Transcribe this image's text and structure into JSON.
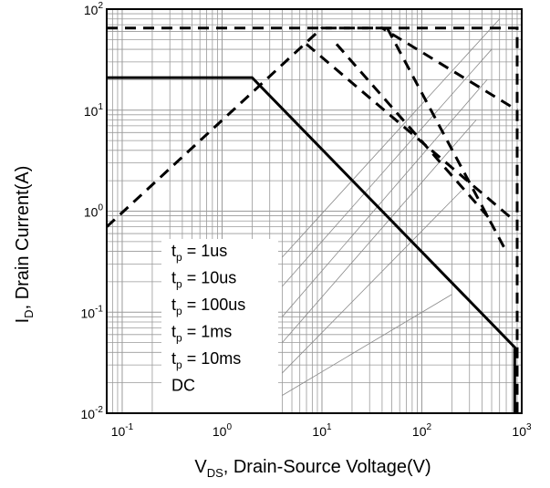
{
  "chart_data": {
    "type": "line",
    "title": "",
    "xlabel": {
      "main": "V",
      "sub": "DS",
      "rest": ", Drain-Source Voltage(V)"
    },
    "ylabel": {
      "main": "I",
      "sub": "D",
      "rest": ", Drain Current(A)"
    },
    "x_scale": "log",
    "y_scale": "log",
    "xlim": [
      0.07,
      1000
    ],
    "ylim": [
      0.01,
      100
    ],
    "grid": true,
    "x_ticks": [
      {
        "base": "10",
        "exp": "-1"
      },
      {
        "base": "10",
        "exp": "0"
      },
      {
        "base": "10",
        "exp": "1"
      },
      {
        "base": "10",
        "exp": "2"
      },
      {
        "base": "10",
        "exp": "3"
      }
    ],
    "y_ticks": [
      {
        "base": "10",
        "exp": "-2"
      },
      {
        "base": "10",
        "exp": "-1"
      },
      {
        "base": "10",
        "exp": "0"
      },
      {
        "base": "10",
        "exp": "1"
      },
      {
        "base": "10",
        "exp": "2"
      }
    ],
    "legend_position": "bottom-left",
    "legend": [
      {
        "main": "t",
        "sub": "p",
        "rest": " = 1us"
      },
      {
        "main": "t",
        "sub": "p",
        "rest": " = 10us"
      },
      {
        "main": "t",
        "sub": "p",
        "rest": " = 100us"
      },
      {
        "main": "t",
        "sub": "p",
        "rest": " = 1ms"
      },
      {
        "main": "t",
        "sub": "p",
        "rest": " = 10ms"
      },
      {
        "main": "DC",
        "sub": "",
        "rest": ""
      }
    ],
    "series": [
      {
        "style": "dashed",
        "points": [
          [
            0.07,
            65
          ],
          [
            900,
            65
          ],
          [
            900,
            0.01
          ]
        ]
      },
      {
        "style": "dashed",
        "points": [
          [
            0.07,
            0.7
          ],
          [
            10,
            65
          ],
          [
            40,
            65
          ],
          [
            900,
            10
          ]
        ]
      },
      {
        "style": "dashed",
        "points": [
          [
            7,
            45
          ],
          [
            850,
            0.8
          ]
        ]
      },
      {
        "style": "dashed",
        "points": [
          [
            45,
            65
          ],
          [
            700,
            0.4
          ]
        ]
      },
      {
        "style": "dashed",
        "points": [
          [
            14,
            45
          ],
          [
            500,
            0.8
          ]
        ]
      },
      {
        "style": "solid",
        "points": [
          [
            0.07,
            21
          ],
          [
            2,
            21
          ],
          [
            850,
            0.045
          ],
          [
            850,
            0.01
          ]
        ]
      }
    ]
  }
}
